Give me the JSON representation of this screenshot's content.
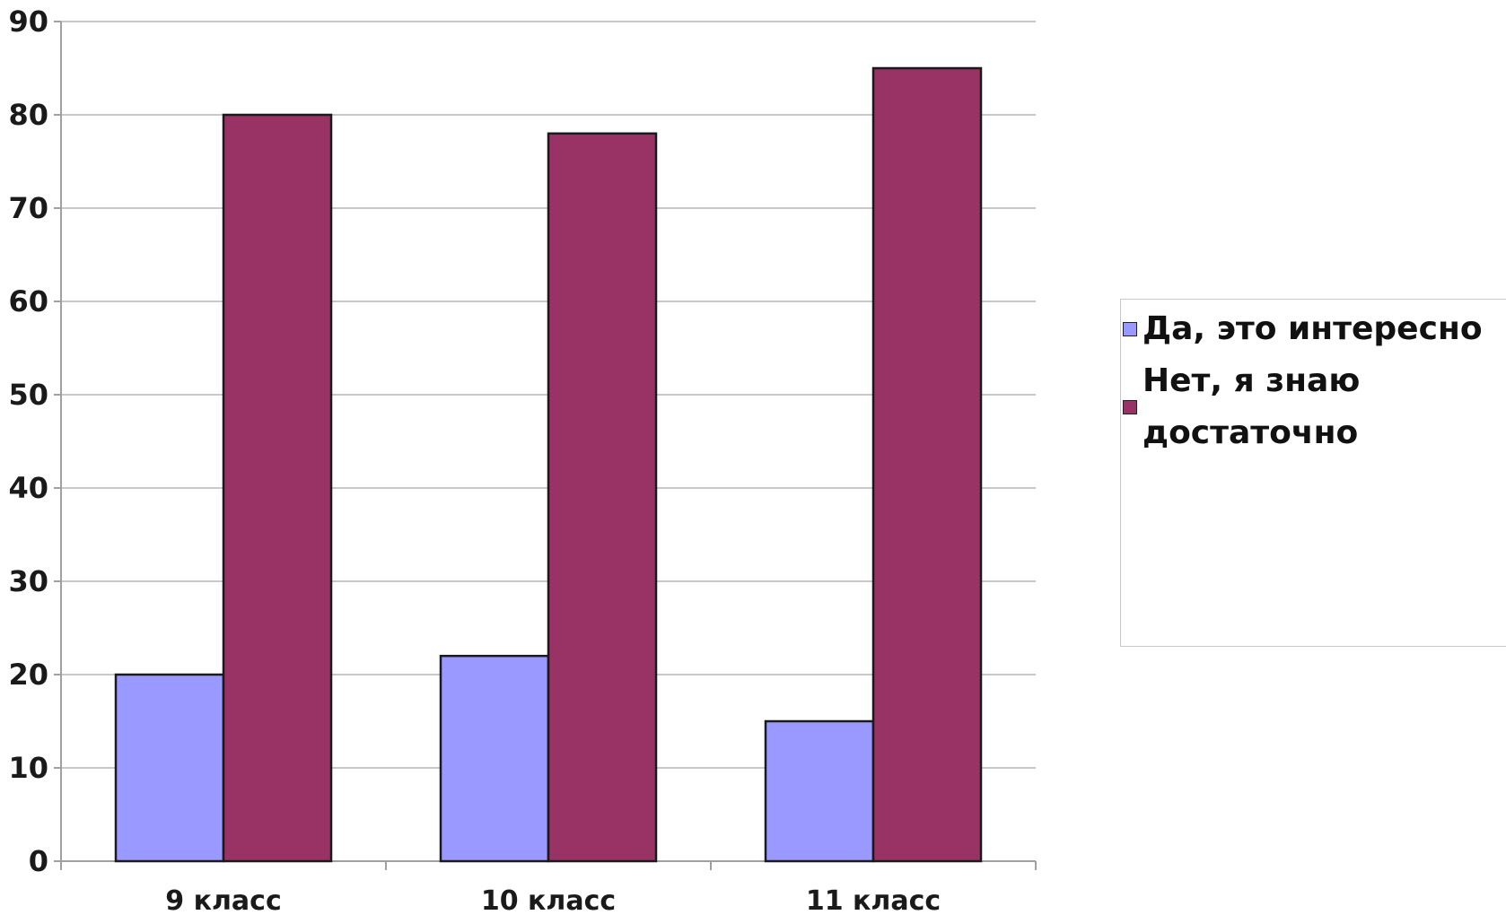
{
  "chart_data": {
    "type": "bar",
    "categories": [
      "9 класс",
      "10 класс",
      "11 класс"
    ],
    "series": [
      {
        "name": "Да, это интересно",
        "values": [
          20,
          22,
          15
        ],
        "color": "#9999ff"
      },
      {
        "name": "Нет, я знаю достаточно",
        "values": [
          80,
          78,
          85
        ],
        "color": "#993366"
      }
    ],
    "ylim": [
      0,
      90
    ],
    "yticks": [
      0,
      10,
      20,
      30,
      40,
      50,
      60,
      70,
      80,
      90
    ],
    "grid": true,
    "legend_position": "right",
    "title": "",
    "xlabel": "",
    "ylabel": ""
  }
}
